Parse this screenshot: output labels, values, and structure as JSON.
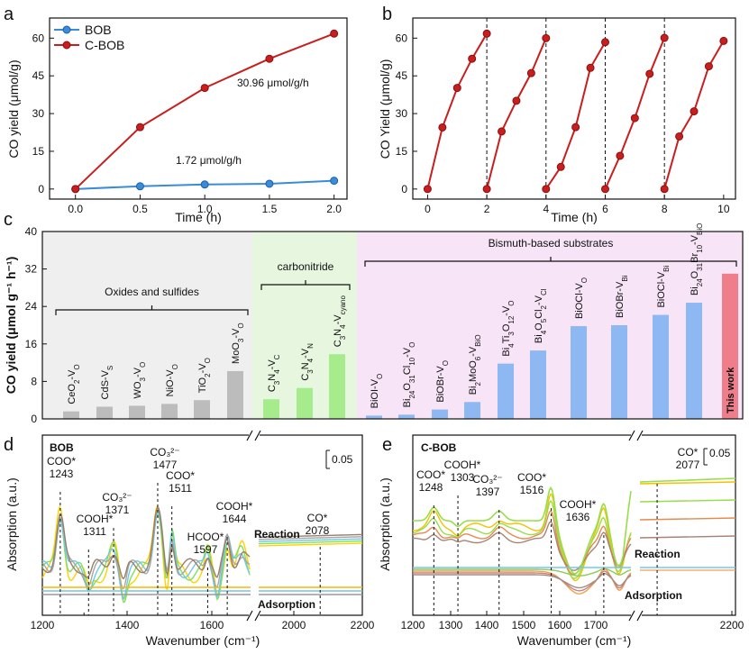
{
  "colors": {
    "bob": "#3a8bd8",
    "cbob": "#c81e1e",
    "cycle": "#c81e1e",
    "group_oxides_bg": "#efefef",
    "group_carbon_bg": "#e7f6df",
    "group_bismuth_bg": "#f7e4f6",
    "bar_oxides": "#bcbcbc",
    "bar_carbon": "#a6ec8d",
    "bar_bismuth": "#8eb8f2",
    "bar_thiswork": "#f07d8a",
    "ir_reaction": [
      "#ffd200",
      "#80e060",
      "#6ec9e6",
      "#a6a6a6",
      "#9a7e6a"
    ],
    "ir_adsorption": [
      "#ffb400",
      "#6ec9e6",
      "#9a9a9a"
    ],
    "ir_c_reaction": [
      "#f2c200",
      "#98dd4a",
      "#e58a50",
      "#a88474"
    ],
    "ir_c_adsorption": [
      "#70c8f0",
      "#8acc55",
      "#f0a050",
      "#cc8080",
      "#9e8e80"
    ]
  },
  "panels": {
    "a": {
      "label": "a",
      "chart_data": {
        "type": "line",
        "xlabel": "Time (h)",
        "ylabel": "CO yield (μmol/g)",
        "xlim": [
          -0.2,
          2.1
        ],
        "ylim": [
          -4,
          68
        ],
        "xticks": [
          "0.0",
          "0.5",
          "1.0",
          "1.5",
          "2.0"
        ],
        "yticks": [
          "0",
          "15",
          "30",
          "45",
          "60"
        ],
        "series": [
          {
            "name": "BOB",
            "x": [
              0,
              0.5,
              1.0,
              1.5,
              2.0
            ],
            "values": [
              0,
              1.1,
              1.8,
              2.1,
              3.3
            ]
          },
          {
            "name": "C-BOB",
            "x": [
              0,
              0.5,
              1.0,
              1.5,
              2.0
            ],
            "values": [
              0,
              24.6,
              40.2,
              51.8,
              61.8
            ]
          }
        ],
        "annotations": [
          "30.96  μmol/g/h",
          "1.72 μmol/g/h"
        ]
      }
    },
    "b": {
      "label": "b",
      "chart_data": {
        "type": "line",
        "xlabel": "Time (h)",
        "ylabel": "CO Yield (μmol/g)",
        "xlim": [
          -0.5,
          10.4
        ],
        "ylim": [
          -4,
          68
        ],
        "xticks": [
          "0",
          "2",
          "4",
          "6",
          "8",
          "10"
        ],
        "yticks": [
          "0",
          "15",
          "30",
          "45",
          "60"
        ],
        "cycles": [
          {
            "x": [
              0,
              0.5,
              1.0,
              1.5,
              2.0
            ],
            "values": [
              0,
              24.5,
              40.2,
              51.8,
              61.8
            ]
          },
          {
            "x": [
              2,
              2.5,
              3.0,
              3.5,
              4.0
            ],
            "values": [
              0,
              22.9,
              35.1,
              46.1,
              60.0
            ]
          },
          {
            "x": [
              4,
              4.5,
              5.0,
              5.5,
              6.0
            ],
            "values": [
              0,
              8.8,
              24.6,
              48.2,
              58.4
            ]
          },
          {
            "x": [
              6,
              6.5,
              7.0,
              7.5,
              8.0
            ],
            "values": [
              0,
              13.2,
              28.2,
              45.8,
              60.1
            ]
          },
          {
            "x": [
              8,
              8.5,
              9.0,
              9.5,
              10.0
            ],
            "values": [
              0,
              20.9,
              30.9,
              48.8,
              58.9
            ]
          }
        ],
        "dividers": [
          2,
          4,
          6,
          8
        ]
      }
    },
    "c": {
      "label": "c",
      "chart_data": {
        "type": "bar",
        "ylabel": "CO yield (μmol g⁻¹ h⁻¹)",
        "ylim": [
          0,
          40
        ],
        "yticks": [
          "0",
          "8",
          "16",
          "24",
          "32",
          "40"
        ],
        "groups": [
          {
            "name": "Oxides and sulfides",
            "count": 6
          },
          {
            "name": "carbonitride",
            "count": 3
          },
          {
            "name": "Bismuth-based substrates",
            "count": 11
          }
        ],
        "categories": [
          {
            "base": "CeO",
            "sub1": "2",
            "mid": "-V",
            "sub2": "O"
          },
          {
            "base": "CdS",
            "sub1": "",
            "mid": "-V",
            "sub2": "S"
          },
          {
            "base": "WO",
            "sub1": "3",
            "mid": "-V",
            "sub2": "O"
          },
          {
            "base": "NiO",
            "sub1": "",
            "mid": "-V",
            "sub2": "O"
          },
          {
            "base": "TiO",
            "sub1": "2",
            "mid": "-V",
            "sub2": "O"
          },
          {
            "base": "MoO",
            "sub1": "3",
            "mid": "-V",
            "sub2": "O"
          },
          {
            "base": "C3N4",
            "sub1": "",
            "mid": "-V",
            "sub2": "C"
          },
          {
            "base": "C3N4",
            "sub1": "",
            "mid": "-V",
            "sub2": "N"
          },
          {
            "base": "C3N4",
            "sub1": "",
            "mid": "-V",
            "sub2": "cyano"
          },
          {
            "base": "BiOI",
            "sub1": "",
            "mid": "-V",
            "sub2": "O"
          },
          {
            "base": "Bi24O31Cl10",
            "sub1": "",
            "mid": "-V",
            "sub2": "O"
          },
          {
            "base": "BiOBr",
            "sub1": "",
            "mid": "-V",
            "sub2": "O"
          },
          {
            "base": "Bi2MoO6",
            "sub1": "",
            "mid": "-V",
            "sub2": "BiO"
          },
          {
            "base": "Bi4Ti3O12",
            "sub1": "",
            "mid": "-V",
            "sub2": "O"
          },
          {
            "base": "Bi4O5Cl2",
            "sub1": "",
            "mid": "-V",
            "sub2": "Cl"
          },
          {
            "base": "BiOCl",
            "sub1": "",
            "mid": "-V",
            "sub2": "O"
          },
          {
            "base": "BiOBr",
            "sub1": "",
            "mid": "-V",
            "sub2": "Bi"
          },
          {
            "base": "BiOCl",
            "sub1": "",
            "mid": "-V",
            "sub2": "Bi"
          },
          {
            "base": "Bi24O31Br10",
            "sub1": "",
            "mid": "-V",
            "sub2": "BiO"
          },
          {
            "base": "This work",
            "sub1": "",
            "mid": "",
            "sub2": ""
          }
        ],
        "values": [
          1.6,
          2.6,
          2.8,
          3.2,
          4.0,
          10.2,
          4.2,
          6.6,
          13.8,
          0.7,
          0.9,
          2.0,
          3.6,
          11.8,
          14.6,
          19.8,
          20.0,
          22.2,
          24.8,
          31.0
        ]
      }
    },
    "d": {
      "label": "d",
      "chart_data": {
        "type": "line",
        "title": "BOB",
        "xlabel": "Wavenumber (cm⁻¹)",
        "ylabel": "Absorption (a.u.)",
        "xlim": [
          1200,
          2200
        ],
        "xticks": [
          "1200",
          "1400",
          "1600",
          "2000",
          "2200"
        ],
        "axis_break_after": 1700,
        "scale_bar": "0.05",
        "peaks": [
          {
            "species": "COO*",
            "wavenumber": "1243"
          },
          {
            "species": "COOH*",
            "wavenumber": "1311"
          },
          {
            "species": "CO₃²⁻",
            "wavenumber": "1371"
          },
          {
            "species": "CO₃²⁻",
            "wavenumber": "1477"
          },
          {
            "species": "COO*",
            "wavenumber": "1511"
          },
          {
            "species": "HCOO*",
            "wavenumber": "1597"
          },
          {
            "species": "COOH*",
            "wavenumber": "1644"
          },
          {
            "species": "CO*",
            "wavenumber": "2078"
          }
        ],
        "region_labels": [
          "Reaction",
          "Adsorption"
        ]
      }
    },
    "e": {
      "label": "e",
      "chart_data": {
        "type": "line",
        "title": "C-BOB",
        "xlabel": "Wavenumber (cm⁻¹)",
        "ylabel": "Absorption (a.u.)",
        "xlim": [
          1200,
          2200
        ],
        "xticks": [
          "1200",
          "1300",
          "1400",
          "1500",
          "1600",
          "1700",
          "2200"
        ],
        "axis_break_after": 1700,
        "scale_bar": "0.05",
        "peaks": [
          {
            "species": "COO*",
            "wavenumber": "1248"
          },
          {
            "species": "COOH*",
            "wavenumber": "1303"
          },
          {
            "species": "CO₃²⁻",
            "wavenumber": "1397"
          },
          {
            "species": "COO*",
            "wavenumber": "1516"
          },
          {
            "species": "COOH*",
            "wavenumber": "1636"
          },
          {
            "species": "CO*",
            "wavenumber": "2077"
          }
        ],
        "region_labels": [
          "Reaction",
          "Adsorption"
        ]
      }
    }
  }
}
